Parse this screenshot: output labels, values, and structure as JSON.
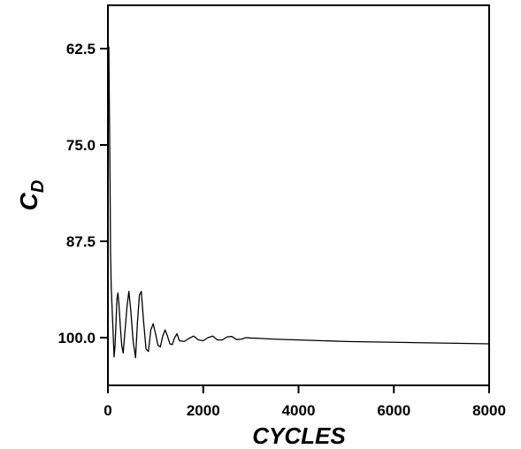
{
  "chart_data": {
    "type": "line",
    "title": "",
    "xlabel": "CYCLES",
    "ylabel": {
      "main": "C",
      "sub": "D"
    },
    "xlim": [
      0,
      8000
    ],
    "ylim": [
      62.5,
      100.0
    ],
    "y_axis_inverted": true,
    "x_ticks": [
      0,
      2000,
      4000,
      6000,
      8000
    ],
    "x_tick_labels": [
      "0",
      "2000",
      "4000",
      "6000",
      "8000"
    ],
    "y_ticks": [
      62.5,
      75.0,
      87.5,
      100.0
    ],
    "y_tick_labels": [
      "62.5",
      "75.0",
      "87.5",
      "100.0"
    ],
    "grid": false,
    "line_color": "#000000",
    "series": [
      {
        "x": [
          0,
          10,
          20,
          30,
          45,
          55,
          70,
          90,
          110,
          130,
          150,
          170,
          190,
          210,
          230,
          260,
          290,
          320,
          360,
          400,
          440,
          480,
          530,
          580,
          620,
          660,
          700,
          750,
          800,
          850,
          900,
          950,
          1000,
          1050,
          1100,
          1150,
          1200,
          1250,
          1300,
          1350,
          1400,
          1450,
          1500,
          1600,
          1700,
          1800,
          1900,
          2000,
          2100,
          2200,
          2300,
          2400,
          2500,
          2600,
          2700,
          2800,
          2900,
          3000,
          3200,
          3500,
          4000,
          4500,
          5000,
          6000,
          7000,
          8000
        ],
        "y": [
          75.0,
          65.0,
          62.3,
          70.0,
          80.0,
          89.0,
          93.5,
          96.5,
          99.5,
          102.5,
          101.0,
          98.0,
          95.0,
          94.2,
          95.5,
          98.5,
          101.0,
          102.0,
          99.0,
          96.0,
          94.0,
          96.5,
          100.5,
          102.6,
          98.0,
          94.5,
          94.0,
          98.0,
          101.5,
          101.8,
          99.0,
          98.2,
          99.5,
          101.0,
          101.2,
          99.8,
          99.0,
          99.8,
          100.8,
          100.9,
          100.0,
          99.5,
          100.4,
          100.5,
          100.1,
          99.8,
          100.3,
          100.4,
          100.0,
          99.8,
          100.3,
          100.3,
          99.9,
          99.85,
          100.25,
          100.2,
          100.0,
          100.05,
          100.1,
          100.2,
          100.3,
          100.4,
          100.5,
          100.6,
          100.7,
          100.8
        ]
      }
    ]
  }
}
